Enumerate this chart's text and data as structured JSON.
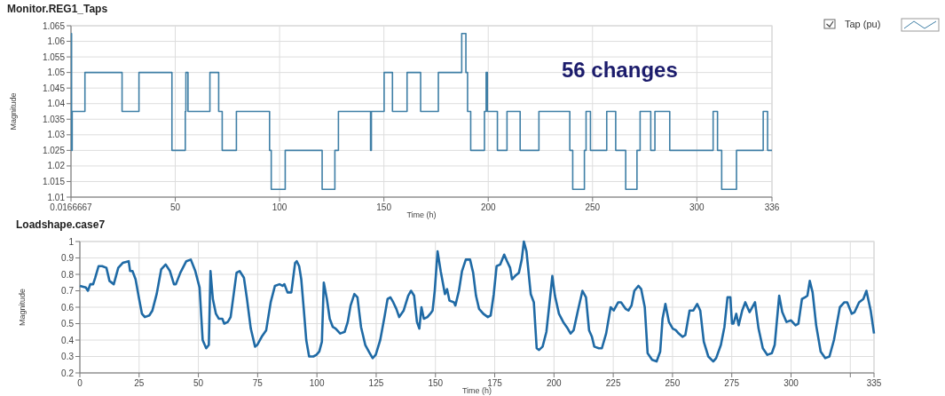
{
  "chart_data": [
    {
      "type": "step",
      "title": "Monitor.REG1_Taps",
      "xlabel": "Time (h)",
      "ylabel": "Magnitude",
      "xlim": [
        0.0166667,
        336
      ],
      "xticks": [
        {
          "value": 0.0166667,
          "label": "0.0166667"
        },
        50,
        100,
        150,
        200,
        250,
        300,
        336
      ],
      "ylim": [
        1.01,
        1.065
      ],
      "yticks": [
        1.01,
        1.015,
        1.02,
        1.025,
        1.03,
        1.035,
        1.04,
        1.045,
        1.05,
        1.055,
        1.06,
        1.065
      ],
      "grid": true,
      "legend": "top right",
      "annotations": [
        "56 changes"
      ],
      "series": [
        {
          "name": "Tap (pu)",
          "color": "#3f7fa6",
          "x": [
            0.0167,
            0.3,
            0.6,
            6.7,
            24.5,
            32.6,
            48.4,
            54.8,
            55.1,
            56.1,
            66.6,
            70.8,
            72.5,
            79.3,
            95.2,
            96.0,
            102.7,
            120.4,
            126.5,
            128.2,
            143.6,
            144.0,
            150.1,
            154.1,
            161.1,
            167.6,
            176.1,
            187.3,
            189.3,
            190.1,
            191.6,
            198.2,
            199.0,
            199.6,
            204.4,
            209.0,
            215.3,
            224.3,
            239.1,
            240.5,
            246.1,
            246.9,
            249.0,
            256.8,
            261.1,
            265.9,
            271.3,
            272.8,
            277.9,
            279.9,
            287.0,
            307.8,
            309.9,
            311.9,
            319.0,
            331.8,
            333.9,
            336
          ],
          "values": [
            1.0625,
            1.025,
            1.0375,
            1.05,
            1.0375,
            1.05,
            1.025,
            1.0375,
            1.05,
            1.0375,
            1.05,
            1.0375,
            1.025,
            1.0375,
            1.025,
            1.0125,
            1.025,
            1.0125,
            1.025,
            1.0375,
            1.025,
            1.0375,
            1.05,
            1.0375,
            1.05,
            1.0375,
            1.05,
            1.0625,
            1.05,
            1.0375,
            1.025,
            1.0375,
            1.05,
            1.0375,
            1.025,
            1.0375,
            1.025,
            1.0375,
            1.025,
            1.0125,
            1.025,
            1.0375,
            1.025,
            1.0375,
            1.025,
            1.0125,
            1.025,
            1.0375,
            1.025,
            1.0375,
            1.025,
            1.0375,
            1.025,
            1.0125,
            1.025,
            1.0375,
            1.025,
            1.025
          ]
        }
      ]
    },
    {
      "type": "line",
      "title": "Loadshape.case7",
      "xlabel": "Time (h)",
      "ylabel": "Magnitude",
      "xlim": [
        0,
        335
      ],
      "xticks": [
        0,
        25,
        50,
        75,
        100,
        125,
        150,
        175,
        200,
        225,
        250,
        275,
        300,
        {
          "value": 325,
          "label": null
        },
        335
      ],
      "ylim": [
        0.2,
        1
      ],
      "yticks": [
        0.2,
        0.3,
        0.4,
        0.5,
        0.6,
        0.7,
        0.8,
        0.9,
        1
      ],
      "grid": true,
      "series": [
        {
          "color": "#1f6aa5",
          "x": [
            0,
            2.5,
            3.4,
            4.4,
            5.6,
            6.5,
            7.9,
            9.4,
            11.2,
            12.5,
            14.3,
            16.2,
            18.1,
            20.6,
            21.2,
            22.2,
            23.5,
            25.0,
            26.2,
            27.4,
            29.3,
            30.6,
            32.4,
            34.3,
            36.2,
            38.0,
            39.7,
            40.5,
            42.4,
            44.9,
            46.8,
            48.7,
            50.5,
            51.8,
            53.3,
            54.4,
            55.1,
            56.1,
            57.4,
            58.6,
            60.1,
            60.9,
            62.4,
            63.6,
            64.9,
            66.1,
            67.4,
            69.2,
            70.5,
            72.1,
            73.9,
            74.8,
            76.7,
            78.6,
            80.5,
            82.3,
            84.2,
            85.5,
            86.3,
            87.6,
            89.2,
            90.8,
            91.5,
            92.5,
            93.4,
            94.5,
            95.5,
            96.7,
            98.5,
            99.8,
            101.0,
            102.1,
            102.9,
            104.2,
            105.4,
            106.7,
            107.9,
            109.8,
            111.7,
            113.0,
            114.2,
            115.8,
            117.1,
            118.6,
            120.4,
            122.3,
            123.5,
            124.8,
            126.7,
            128.5,
            129.8,
            131.0,
            132.2,
            133.5,
            134.7,
            136.6,
            138.5,
            139.7,
            141.0,
            142.2,
            143.2,
            144.1,
            145.1,
            146.6,
            147.8,
            148.8,
            149.7,
            150.9,
            152.2,
            154.0,
            154.9,
            155.9,
            157.8,
            158.4,
            159.9,
            161.2,
            162.8,
            164.6,
            165.9,
            167.1,
            168.4,
            170.2,
            172.1,
            173.3,
            174.6,
            175.8,
            177.3,
            179.0,
            180.2,
            181.5,
            182.3,
            183.6,
            185.2,
            186.4,
            187.3,
            188.4,
            190.2,
            191.5,
            192.7,
            193.7,
            195.2,
            196.8,
            198.3,
            199.3,
            200.4,
            202.1,
            203.9,
            205.8,
            207.0,
            208.3,
            210.1,
            212.0,
            213.5,
            214.8,
            216.0,
            217.0,
            218.9,
            220.2,
            222.0,
            223.9,
            225.2,
            227.1,
            228.3,
            230.2,
            231.4,
            232.7,
            233.9,
            235.6,
            236.8,
            238.3,
            239.5,
            241.4,
            243.3,
            244.8,
            245.8,
            247.0,
            248.5,
            250.1,
            251.4,
            252.6,
            254.2,
            255.4,
            257.2,
            258.8,
            260.4,
            261.7,
            263.2,
            265.1,
            267.2,
            268.4,
            270.4,
            271.9,
            273.2,
            274.4,
            275.1,
            275.7,
            276.9,
            277.9,
            279.4,
            280.7,
            282.5,
            284.8,
            286.3,
            288.1,
            290.0,
            291.9,
            293.1,
            295.0,
            296.3,
            298.1,
            300.0,
            301.9,
            303.1,
            304.6,
            305.9,
            306.9,
            307.9,
            309.1,
            310.6,
            312.5,
            314.4,
            316.2,
            318.1,
            320.6,
            322.5,
            323.7,
            325.6,
            326.8,
            328.7,
            330.5,
            331.8,
            333.6,
            335.0
          ],
          "values": [
            0.73,
            0.72,
            0.7,
            0.74,
            0.74,
            0.78,
            0.85,
            0.85,
            0.84,
            0.76,
            0.74,
            0.84,
            0.87,
            0.88,
            0.82,
            0.82,
            0.77,
            0.65,
            0.56,
            0.54,
            0.55,
            0.58,
            0.68,
            0.83,
            0.86,
            0.82,
            0.74,
            0.74,
            0.81,
            0.88,
            0.89,
            0.82,
            0.72,
            0.4,
            0.35,
            0.37,
            0.82,
            0.65,
            0.56,
            0.53,
            0.53,
            0.5,
            0.51,
            0.54,
            0.68,
            0.81,
            0.82,
            0.78,
            0.65,
            0.47,
            0.36,
            0.37,
            0.42,
            0.46,
            0.63,
            0.73,
            0.74,
            0.73,
            0.74,
            0.69,
            0.69,
            0.87,
            0.88,
            0.85,
            0.77,
            0.58,
            0.4,
            0.3,
            0.3,
            0.31,
            0.33,
            0.39,
            0.75,
            0.65,
            0.53,
            0.48,
            0.47,
            0.44,
            0.45,
            0.51,
            0.61,
            0.68,
            0.66,
            0.48,
            0.37,
            0.32,
            0.29,
            0.31,
            0.4,
            0.54,
            0.65,
            0.66,
            0.63,
            0.59,
            0.54,
            0.58,
            0.67,
            0.7,
            0.67,
            0.51,
            0.47,
            0.6,
            0.53,
            0.54,
            0.56,
            0.58,
            0.7,
            0.94,
            0.82,
            0.68,
            0.71,
            0.64,
            0.63,
            0.61,
            0.7,
            0.82,
            0.89,
            0.89,
            0.81,
            0.67,
            0.59,
            0.56,
            0.54,
            0.55,
            0.68,
            0.85,
            0.86,
            0.92,
            0.88,
            0.84,
            0.77,
            0.79,
            0.81,
            0.89,
            1.0,
            0.94,
            0.68,
            0.63,
            0.35,
            0.34,
            0.36,
            0.45,
            0.65,
            0.79,
            0.67,
            0.56,
            0.51,
            0.47,
            0.44,
            0.46,
            0.58,
            0.7,
            0.66,
            0.46,
            0.42,
            0.36,
            0.35,
            0.35,
            0.44,
            0.6,
            0.58,
            0.63,
            0.63,
            0.59,
            0.58,
            0.61,
            0.7,
            0.73,
            0.71,
            0.6,
            0.32,
            0.28,
            0.27,
            0.33,
            0.53,
            0.62,
            0.51,
            0.47,
            0.46,
            0.44,
            0.42,
            0.43,
            0.58,
            0.58,
            0.62,
            0.58,
            0.39,
            0.3,
            0.27,
            0.29,
            0.37,
            0.48,
            0.66,
            0.66,
            0.5,
            0.5,
            0.56,
            0.49,
            0.58,
            0.63,
            0.57,
            0.63,
            0.47,
            0.35,
            0.31,
            0.32,
            0.37,
            0.67,
            0.57,
            0.51,
            0.52,
            0.49,
            0.5,
            0.65,
            0.66,
            0.67,
            0.76,
            0.69,
            0.49,
            0.33,
            0.29,
            0.3,
            0.4,
            0.6,
            0.63,
            0.63,
            0.56,
            0.57,
            0.63,
            0.65,
            0.7,
            0.58,
            0.44
          ]
        }
      ]
    }
  ]
}
